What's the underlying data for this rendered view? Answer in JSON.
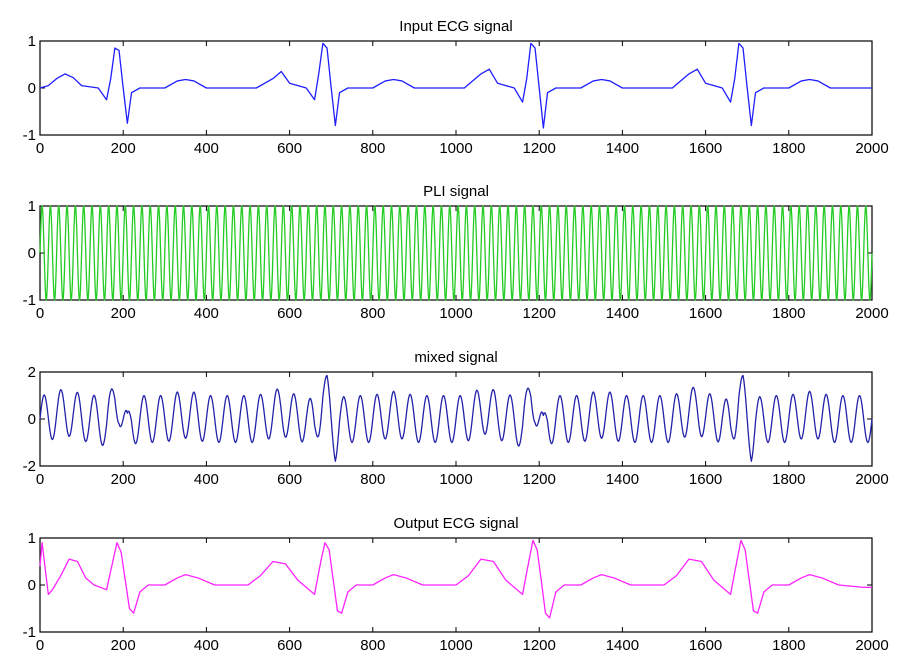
{
  "chart_data": [
    {
      "type": "line",
      "title": "Input ECG signal",
      "xlabel": "",
      "ylabel": "",
      "xlim": [
        0,
        2000
      ],
      "ylim": [
        -1,
        1
      ],
      "xticks": [
        "0",
        "200",
        "400",
        "600",
        "800",
        "1000",
        "1200",
        "1400",
        "1600",
        "1800",
        "2000"
      ],
      "yticks": [
        "-1",
        "0",
        "1"
      ],
      "grid": false,
      "color": "#1f1fff",
      "series": [
        {
          "x": [
            0,
            20,
            40,
            60,
            80,
            100,
            140,
            160,
            170,
            180,
            190,
            200,
            210,
            220,
            240,
            300,
            330,
            350,
            370,
            400,
            520,
            560,
            580,
            600,
            640,
            660,
            670,
            680,
            690,
            700,
            710,
            720,
            740,
            800,
            830,
            850,
            870,
            900,
            1020,
            1060,
            1080,
            1100,
            1140,
            1160,
            1170,
            1180,
            1190,
            1200,
            1210,
            1220,
            1240,
            1300,
            1330,
            1350,
            1370,
            1400,
            1520,
            1560,
            1580,
            1600,
            1640,
            1660,
            1670,
            1680,
            1690,
            1700,
            1710,
            1720,
            1740,
            1800,
            1830,
            1850,
            1870,
            1900,
            2000
          ],
          "y": [
            0,
            0.05,
            0.2,
            0.3,
            0.22,
            0.05,
            0,
            -0.25,
            0.2,
            0.85,
            0.8,
            0,
            -0.75,
            -0.1,
            0,
            0,
            0.15,
            0.18,
            0.15,
            0,
            0,
            0.2,
            0.35,
            0.1,
            0,
            -0.25,
            0.3,
            0.95,
            0.85,
            0,
            -0.8,
            -0.1,
            0,
            0,
            0.15,
            0.18,
            0.15,
            0,
            0,
            0.3,
            0.4,
            0.1,
            0,
            -0.3,
            0.2,
            0.95,
            0.85,
            0,
            -0.85,
            -0.1,
            0,
            0,
            0.15,
            0.18,
            0.15,
            0,
            0,
            0.3,
            0.4,
            0.1,
            0,
            -0.3,
            0.2,
            0.95,
            0.85,
            0,
            -0.8,
            -0.1,
            0,
            0,
            0.15,
            0.18,
            0.15,
            0,
            0
          ]
        }
      ]
    },
    {
      "type": "line",
      "title": "PLI signal",
      "xlabel": "",
      "ylabel": "",
      "xlim": [
        0,
        2000
      ],
      "ylim": [
        -1,
        1
      ],
      "xticks": [
        "0",
        "200",
        "400",
        "600",
        "800",
        "1000",
        "1200",
        "1400",
        "1600",
        "1800",
        "2000"
      ],
      "yticks": [
        "-1",
        "0",
        "1"
      ],
      "grid": false,
      "color": "#22cc22",
      "series": [
        {
          "function": "sin",
          "amplitude": 1,
          "period": 20,
          "x_range": [
            0,
            2000
          ]
        }
      ]
    },
    {
      "type": "line",
      "title": "mixed signal",
      "xlabel": "",
      "ylabel": "",
      "xlim": [
        0,
        2000
      ],
      "ylim": [
        -2,
        2
      ],
      "xticks": [
        "0",
        "200",
        "400",
        "600",
        "800",
        "1000",
        "1200",
        "1400",
        "1600",
        "1800",
        "2000"
      ],
      "yticks": [
        "-2",
        "0",
        "2"
      ],
      "grid": false,
      "color": "#2222aa",
      "series": [
        {
          "function": "input_ecg_plus_sin",
          "amplitude": 1,
          "period": 40,
          "x_range": [
            0,
            2000
          ]
        }
      ]
    },
    {
      "type": "line",
      "title": "Output ECG signal",
      "xlabel": "",
      "ylabel": "",
      "xlim": [
        0,
        2000
      ],
      "ylim": [
        -1,
        1
      ],
      "xticks": [
        "0",
        "200",
        "400",
        "600",
        "800",
        "1000",
        "1200",
        "1400",
        "1600",
        "1800",
        "2000"
      ],
      "yticks": [
        "-1",
        "0",
        "1"
      ],
      "grid": false,
      "color": "#ff22ff",
      "series": [
        {
          "x": [
            0,
            5,
            20,
            30,
            50,
            70,
            90,
            110,
            130,
            160,
            175,
            185,
            195,
            205,
            215,
            225,
            240,
            260,
            300,
            330,
            350,
            380,
            420,
            500,
            530,
            560,
            590,
            620,
            660,
            675,
            685,
            695,
            705,
            715,
            725,
            740,
            760,
            800,
            830,
            850,
            880,
            920,
            1000,
            1030,
            1060,
            1090,
            1120,
            1160,
            1175,
            1185,
            1195,
            1205,
            1215,
            1225,
            1240,
            1260,
            1300,
            1330,
            1350,
            1380,
            1420,
            1500,
            1530,
            1560,
            1590,
            1620,
            1660,
            1675,
            1685,
            1695,
            1705,
            1715,
            1725,
            1740,
            1760,
            1800,
            1830,
            1850,
            1880,
            1920,
            1980,
            2000
          ],
          "y": [
            0.4,
            0.9,
            -0.2,
            -0.1,
            0.2,
            0.55,
            0.5,
            0.15,
            0,
            -0.1,
            0.5,
            0.9,
            0.7,
            0.1,
            -0.5,
            -0.6,
            -0.15,
            0,
            0,
            0.15,
            0.22,
            0.15,
            0,
            0,
            0.2,
            0.5,
            0.45,
            0.1,
            -0.2,
            0.5,
            0.9,
            0.75,
            0.1,
            -0.55,
            -0.6,
            -0.15,
            0,
            0,
            0.15,
            0.22,
            0.15,
            0,
            0,
            0.2,
            0.55,
            0.5,
            0.1,
            -0.2,
            0.5,
            0.95,
            0.75,
            0.1,
            -0.6,
            -0.7,
            -0.15,
            0,
            0,
            0.15,
            0.22,
            0.15,
            0,
            0,
            0.2,
            0.55,
            0.5,
            0.1,
            -0.2,
            0.5,
            0.95,
            0.75,
            0.1,
            -0.55,
            -0.6,
            -0.15,
            0,
            0,
            0.15,
            0.22,
            0.15,
            0,
            -0.05,
            -0.05
          ]
        }
      ]
    }
  ]
}
